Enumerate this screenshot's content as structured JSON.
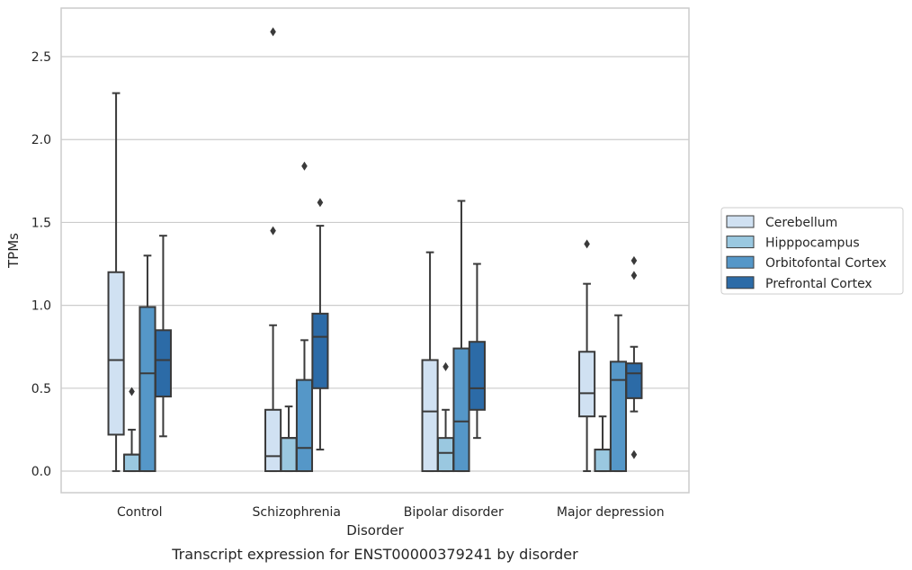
{
  "chart_data": {
    "type": "box",
    "caption": "Transcript expression for ENST00000379241 by disorder",
    "xlabel": "Disorder",
    "ylabel": "TPMs",
    "ylim": [
      -0.13,
      2.793
    ],
    "yticks": [
      "0.0",
      "0.5",
      "1.0",
      "1.5",
      "2.0",
      "2.5"
    ],
    "grid": true,
    "legend_position": "right",
    "categories": [
      "Control",
      "Schizophrenia",
      "Bipolar disorder",
      "Major depression"
    ],
    "series": [
      {
        "name": "Cerebellum",
        "color": "#d0e1f2",
        "boxes": [
          {
            "whislo": 0.0,
            "q1": 0.22,
            "med": 0.67,
            "q3": 1.2,
            "whishi": 2.28,
            "fliers": []
          },
          {
            "whislo": 0.0,
            "q1": 0.0,
            "med": 0.09,
            "q3": 0.37,
            "whishi": 0.88,
            "fliers": [
              1.45,
              2.65
            ]
          },
          {
            "whislo": 0.0,
            "q1": 0.0,
            "med": 0.36,
            "q3": 0.67,
            "whishi": 1.32,
            "fliers": []
          },
          {
            "whislo": 0.0,
            "q1": 0.33,
            "med": 0.47,
            "q3": 0.72,
            "whishi": 1.13,
            "fliers": [
              1.37
            ]
          }
        ]
      },
      {
        "name": "Hipppocampus",
        "color": "#9ac8e0",
        "boxes": [
          {
            "whislo": 0.0,
            "q1": 0.0,
            "med": 0.1,
            "q3": 0.1,
            "whishi": 0.25,
            "fliers": [
              0.48
            ]
          },
          {
            "whislo": 0.0,
            "q1": 0.0,
            "med": 0.2,
            "q3": 0.2,
            "whishi": 0.39,
            "fliers": []
          },
          {
            "whislo": 0.0,
            "q1": 0.0,
            "med": 0.11,
            "q3": 0.2,
            "whishi": 0.37,
            "fliers": [
              0.63
            ]
          },
          {
            "whislo": 0.0,
            "q1": 0.0,
            "med": 0.13,
            "q3": 0.13,
            "whishi": 0.33,
            "fliers": []
          }
        ]
      },
      {
        "name": "Orbitofontal Cortex",
        "color": "#5597c8",
        "boxes": [
          {
            "whislo": 0.0,
            "q1": 0.0,
            "med": 0.59,
            "q3": 0.99,
            "whishi": 1.3,
            "fliers": []
          },
          {
            "whislo": 0.0,
            "q1": 0.0,
            "med": 0.14,
            "q3": 0.55,
            "whishi": 0.79,
            "fliers": [
              1.84
            ]
          },
          {
            "whislo": 0.0,
            "q1": 0.0,
            "med": 0.3,
            "q3": 0.74,
            "whishi": 1.63,
            "fliers": []
          },
          {
            "whislo": 0.0,
            "q1": 0.0,
            "med": 0.55,
            "q3": 0.66,
            "whishi": 0.94,
            "fliers": []
          }
        ]
      },
      {
        "name": "Prefrontal Cortex",
        "color": "#2c6ba7",
        "boxes": [
          {
            "whislo": 0.21,
            "q1": 0.45,
            "med": 0.67,
            "q3": 0.85,
            "whishi": 1.42,
            "fliers": []
          },
          {
            "whislo": 0.13,
            "q1": 0.5,
            "med": 0.81,
            "q3": 0.95,
            "whishi": 1.48,
            "fliers": [
              1.62
            ]
          },
          {
            "whislo": 0.2,
            "q1": 0.37,
            "med": 0.5,
            "q3": 0.78,
            "whishi": 1.25,
            "fliers": []
          },
          {
            "whislo": 0.36,
            "q1": 0.44,
            "med": 0.59,
            "q3": 0.65,
            "whishi": 0.75,
            "fliers": [
              0.1,
              1.18,
              1.27
            ]
          }
        ]
      }
    ]
  }
}
